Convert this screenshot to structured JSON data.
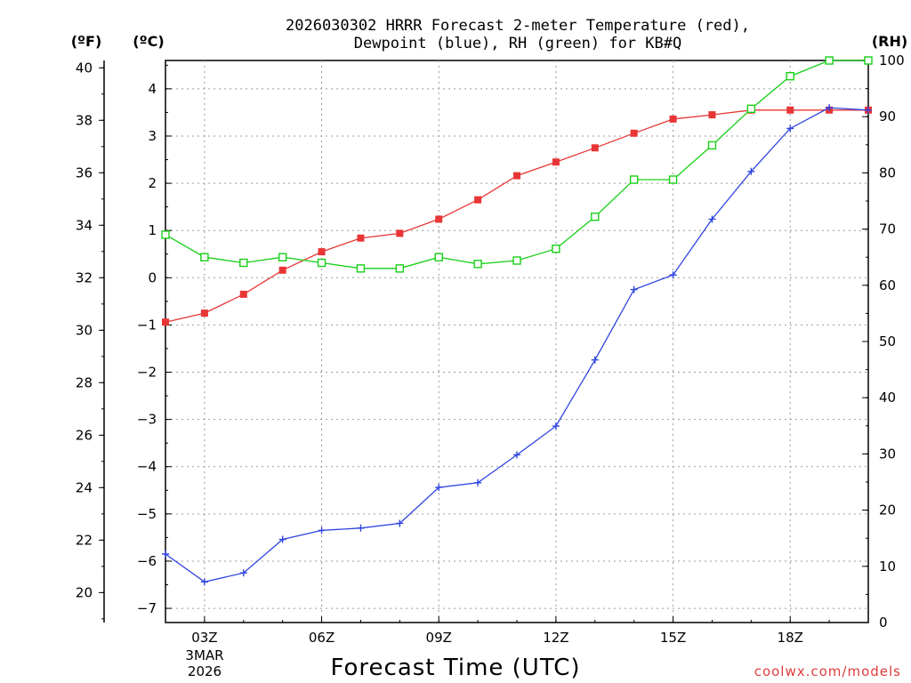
{
  "chart_data": {
    "type": "line",
    "title_line1": "2026030302 HRRR Forecast 2-meter Temperature (red),",
    "title_line2": "Dewpoint (blue), RH (green) for KB#Q",
    "xlabel": "Forecast Time (UTC)",
    "credit": "coolwx.com/models",
    "units": {
      "f": "(ºF)",
      "c": "(ºC)",
      "rh": "(RH)"
    },
    "date_label": [
      "3MAR",
      "2026"
    ],
    "x_hours": [
      2,
      3,
      4,
      5,
      6,
      7,
      8,
      9,
      10,
      11,
      12,
      13,
      14,
      15,
      16,
      17,
      18,
      19,
      20
    ],
    "x_ticks": [
      {
        "hour": 3,
        "label": "03Z"
      },
      {
        "hour": 6,
        "label": "06Z"
      },
      {
        "hour": 9,
        "label": "09Z"
      },
      {
        "hour": 12,
        "label": "12Z"
      },
      {
        "hour": 15,
        "label": "15Z"
      },
      {
        "hour": 18,
        "label": "18Z"
      }
    ],
    "xlim": [
      2,
      20
    ],
    "c_axis": {
      "ylim": [
        -7.3,
        4.6
      ],
      "ticks": [
        "-7",
        "-6",
        "-5",
        "-4",
        "-3",
        "-2",
        "-1",
        "0",
        "1",
        "2",
        "3",
        "4"
      ]
    },
    "f_axis": {
      "ticks": [
        "20",
        "22",
        "24",
        "26",
        "28",
        "30",
        "32",
        "34",
        "36",
        "38",
        "40"
      ]
    },
    "rh_axis": {
      "ylim": [
        0,
        100
      ],
      "ticks": [
        "0",
        "10",
        "20",
        "30",
        "40",
        "50",
        "60",
        "70",
        "80",
        "90",
        "100"
      ]
    },
    "series": [
      {
        "name": "Temperature",
        "units": "C",
        "color": "#e83535",
        "marker": "filled-square",
        "values": [
          -0.94,
          -0.75,
          -0.35,
          0.16,
          0.55,
          0.84,
          0.94,
          1.24,
          1.65,
          2.16,
          2.45,
          2.75,
          3.06,
          3.36,
          3.45,
          3.55,
          3.55,
          3.55,
          3.55
        ]
      },
      {
        "name": "Dewpoint",
        "units": "C",
        "color": "#2e44e0",
        "marker": "plus",
        "values": [
          -5.85,
          -6.44,
          -6.25,
          -5.54,
          -5.35,
          -5.3,
          -5.2,
          -4.44,
          -4.34,
          -3.75,
          -3.14,
          -1.74,
          -0.25,
          0.06,
          1.24,
          2.25,
          3.16,
          3.6,
          3.55
        ]
      },
      {
        "name": "RH",
        "units": "%",
        "color": "#18d018",
        "marker": "open-square",
        "values": [
          69,
          65,
          64,
          65,
          64,
          63,
          63,
          65,
          63.8,
          64.4,
          66.5,
          72.2,
          78.8,
          78.8,
          84.9,
          91.4,
          97.2,
          100,
          100
        ]
      }
    ]
  }
}
